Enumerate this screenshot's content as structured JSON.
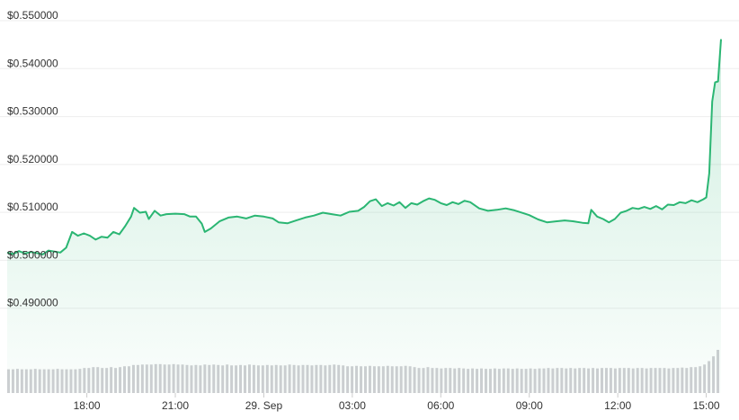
{
  "colors": {
    "line": "#2bb673",
    "volume": "#cfcfd3",
    "grid": "#eeeeee",
    "text": "#333333"
  },
  "chart_data": {
    "type": "line",
    "title": "",
    "xlabel": "",
    "ylabel": "",
    "ylim": [
      0.48,
      0.55
    ],
    "y_ticks": [
      "$0.550000",
      "$0.540000",
      "$0.530000",
      "$0.520000",
      "$0.510000",
      "$0.500000",
      "$0.490000"
    ],
    "y_tick_values": [
      0.55,
      0.54,
      0.53,
      0.52,
      0.51,
      0.5,
      0.49
    ],
    "x_ticks": [
      "18:00",
      "21:00",
      "29. Sep",
      "03:00",
      "06:00",
      "09:00",
      "12:00",
      "15:00"
    ],
    "x_tick_hours": [
      18,
      21,
      24,
      27,
      30,
      33,
      36,
      39
    ],
    "xlim_hours": [
      15.3,
      39.5
    ],
    "grid": true,
    "legend": "none",
    "series": [
      {
        "price": [
          [
            15.3,
            0.5005
          ],
          [
            15.5,
            0.5002
          ],
          [
            15.7,
            0.5008
          ],
          [
            15.9,
            0.5003
          ],
          [
            16.1,
            0.5006
          ],
          [
            16.3,
            0.5004
          ],
          [
            16.5,
            0.5001
          ],
          [
            16.7,
            0.5009
          ],
          [
            16.9,
            0.5007
          ],
          [
            17.1,
            0.5005
          ],
          [
            17.3,
            0.5015
          ],
          [
            17.5,
            0.5048
          ],
          [
            17.7,
            0.504
          ],
          [
            17.9,
            0.5045
          ],
          [
            18.1,
            0.504
          ],
          [
            18.3,
            0.5032
          ],
          [
            18.5,
            0.5038
          ],
          [
            18.7,
            0.5036
          ],
          [
            18.9,
            0.5048
          ],
          [
            19.1,
            0.5043
          ],
          [
            19.3,
            0.506
          ],
          [
            19.5,
            0.508
          ],
          [
            19.6,
            0.5098
          ],
          [
            19.8,
            0.5088
          ],
          [
            20.0,
            0.509
          ],
          [
            20.1,
            0.5075
          ],
          [
            20.3,
            0.5092
          ],
          [
            20.5,
            0.5082
          ],
          [
            20.7,
            0.5085
          ],
          [
            21.0,
            0.5086
          ],
          [
            21.3,
            0.5085
          ],
          [
            21.5,
            0.508
          ],
          [
            21.7,
            0.508
          ],
          [
            21.9,
            0.5065
          ],
          [
            22.0,
            0.5048
          ],
          [
            22.2,
            0.5055
          ],
          [
            22.5,
            0.507
          ],
          [
            22.8,
            0.5078
          ],
          [
            23.1,
            0.508
          ],
          [
            23.4,
            0.5076
          ],
          [
            23.7,
            0.5082
          ],
          [
            24.0,
            0.508
          ],
          [
            24.3,
            0.5076
          ],
          [
            24.5,
            0.5068
          ],
          [
            24.8,
            0.5066
          ],
          [
            25.1,
            0.5072
          ],
          [
            25.4,
            0.5078
          ],
          [
            25.7,
            0.5082
          ],
          [
            26.0,
            0.5088
          ],
          [
            26.3,
            0.5085
          ],
          [
            26.6,
            0.5082
          ],
          [
            26.9,
            0.509
          ],
          [
            27.2,
            0.5092
          ],
          [
            27.4,
            0.51
          ],
          [
            27.6,
            0.5112
          ],
          [
            27.8,
            0.5116
          ],
          [
            28.0,
            0.5102
          ],
          [
            28.2,
            0.5108
          ],
          [
            28.4,
            0.5103
          ],
          [
            28.6,
            0.511
          ],
          [
            28.8,
            0.5098
          ],
          [
            29.0,
            0.5108
          ],
          [
            29.2,
            0.5105
          ],
          [
            29.4,
            0.5112
          ],
          [
            29.6,
            0.5118
          ],
          [
            29.8,
            0.5115
          ],
          [
            30.0,
            0.5108
          ],
          [
            30.2,
            0.5104
          ],
          [
            30.4,
            0.511
          ],
          [
            30.6,
            0.5106
          ],
          [
            30.8,
            0.5113
          ],
          [
            31.0,
            0.511
          ],
          [
            31.3,
            0.5097
          ],
          [
            31.6,
            0.5092
          ],
          [
            31.9,
            0.5094
          ],
          [
            32.2,
            0.5097
          ],
          [
            32.5,
            0.5093
          ],
          [
            32.8,
            0.5087
          ],
          [
            33.0,
            0.5083
          ],
          [
            33.3,
            0.5074
          ],
          [
            33.6,
            0.5068
          ],
          [
            33.9,
            0.507
          ],
          [
            34.2,
            0.5072
          ],
          [
            34.5,
            0.507
          ],
          [
            34.8,
            0.5067
          ],
          [
            35.0,
            0.5066
          ],
          [
            35.1,
            0.5094
          ],
          [
            35.3,
            0.508
          ],
          [
            35.5,
            0.5075
          ],
          [
            35.7,
            0.5068
          ],
          [
            35.9,
            0.5075
          ],
          [
            36.1,
            0.5088
          ],
          [
            36.3,
            0.5092
          ],
          [
            36.5,
            0.5098
          ],
          [
            36.7,
            0.5096
          ],
          [
            36.9,
            0.51
          ],
          [
            37.1,
            0.5096
          ],
          [
            37.3,
            0.5102
          ],
          [
            37.5,
            0.5095
          ],
          [
            37.7,
            0.5105
          ],
          [
            37.9,
            0.5104
          ],
          [
            38.1,
            0.511
          ],
          [
            38.3,
            0.5108
          ],
          [
            38.5,
            0.5114
          ],
          [
            38.7,
            0.511
          ],
          [
            38.9,
            0.5116
          ],
          [
            39.0,
            0.512
          ],
          [
            39.1,
            0.517
          ],
          [
            39.2,
            0.532
          ],
          [
            39.3,
            0.536
          ],
          [
            39.4,
            0.5362
          ],
          [
            39.5,
            0.545
          ]
        ]
      }
    ],
    "volume": {
      "range_hours": [
        15.3,
        39.5
      ],
      "bars": 160,
      "relative_heights": [
        0.55,
        0.55,
        0.56,
        0.55,
        0.55,
        0.55,
        0.56,
        0.55,
        0.55,
        0.55,
        0.55,
        0.56,
        0.55,
        0.55,
        0.55,
        0.55,
        0.56,
        0.58,
        0.58,
        0.6,
        0.6,
        0.58,
        0.58,
        0.6,
        0.58,
        0.6,
        0.62,
        0.62,
        0.65,
        0.65,
        0.66,
        0.66,
        0.66,
        0.67,
        0.67,
        0.66,
        0.66,
        0.67,
        0.66,
        0.66,
        0.65,
        0.64,
        0.65,
        0.64,
        0.66,
        0.65,
        0.66,
        0.65,
        0.64,
        0.66,
        0.64,
        0.64,
        0.65,
        0.64,
        0.66,
        0.65,
        0.64,
        0.64,
        0.65,
        0.64,
        0.65,
        0.64,
        0.64,
        0.66,
        0.65,
        0.64,
        0.65,
        0.65,
        0.64,
        0.65,
        0.65,
        0.64,
        0.65,
        0.66,
        0.65,
        0.64,
        0.62,
        0.62,
        0.63,
        0.62,
        0.62,
        0.63,
        0.62,
        0.62,
        0.62,
        0.63,
        0.62,
        0.62,
        0.62,
        0.63,
        0.62,
        0.6,
        0.58,
        0.58,
        0.6,
        0.58,
        0.58,
        0.57,
        0.58,
        0.58,
        0.57,
        0.58,
        0.57,
        0.56,
        0.57,
        0.56,
        0.57,
        0.56,
        0.56,
        0.57,
        0.56,
        0.57,
        0.57,
        0.56,
        0.57,
        0.56,
        0.56,
        0.57,
        0.56,
        0.57,
        0.57,
        0.58,
        0.57,
        0.58,
        0.58,
        0.57,
        0.58,
        0.57,
        0.58,
        0.58,
        0.57,
        0.58,
        0.57,
        0.58,
        0.58,
        0.58,
        0.57,
        0.58,
        0.58,
        0.58,
        0.57,
        0.58,
        0.58,
        0.57,
        0.58,
        0.58,
        0.58,
        0.58,
        0.57,
        0.58,
        0.58,
        0.59,
        0.58,
        0.6,
        0.6,
        0.62,
        0.66,
        0.74,
        0.85,
        1.0
      ]
    }
  }
}
